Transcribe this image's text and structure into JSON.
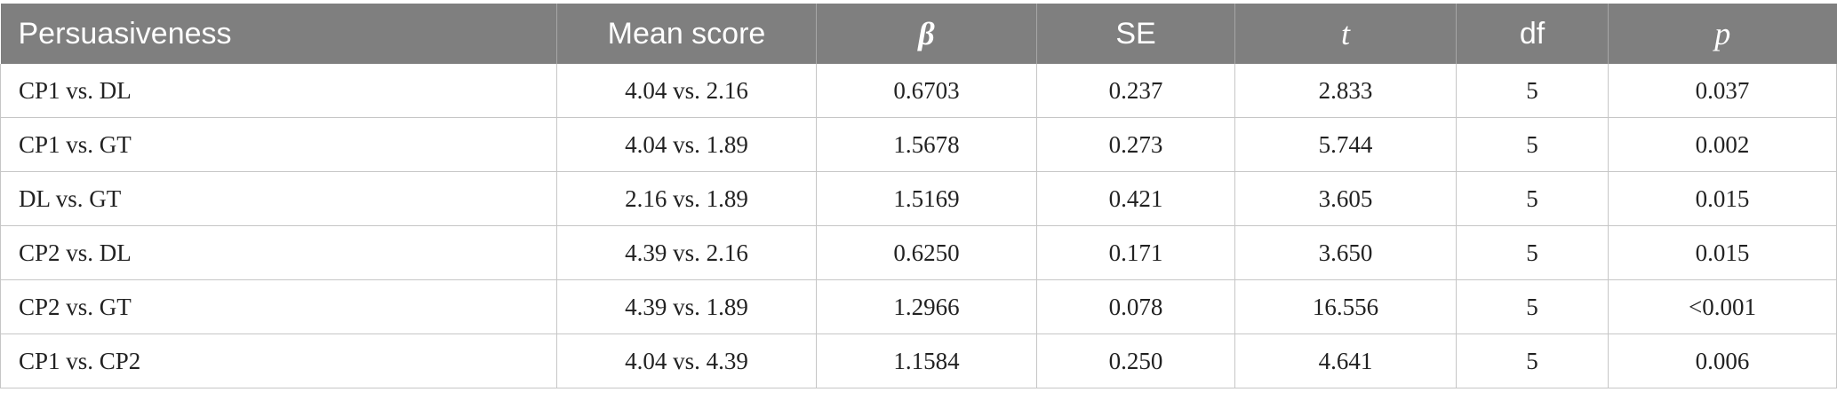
{
  "table": {
    "headers": [
      "Persuasiveness",
      "Mean score",
      "β",
      "SE",
      "t",
      "df",
      "p"
    ],
    "rows": [
      [
        "CP1 vs. DL",
        "4.04 vs. 2.16",
        "0.6703",
        "0.237",
        "2.833",
        "5",
        "0.037"
      ],
      [
        "CP1 vs. GT",
        "4.04 vs. 1.89",
        "1.5678",
        "0.273",
        "5.744",
        "5",
        "0.002"
      ],
      [
        "DL vs. GT",
        "2.16 vs. 1.89",
        "1.5169",
        "0.421",
        "3.605",
        "5",
        "0.015"
      ],
      [
        "CP2 vs. DL",
        "4.39 vs. 2.16",
        "0.6250",
        "0.171",
        "3.650",
        "5",
        "0.015"
      ],
      [
        "CP2 vs. GT",
        "4.39 vs. 1.89",
        "1.2966",
        "0.078",
        "16.556",
        "5",
        "<0.001"
      ],
      [
        "CP1 vs. CP2",
        "4.04 vs. 4.39",
        "1.1584",
        "0.250",
        "4.641",
        "5",
        "0.006"
      ]
    ]
  }
}
